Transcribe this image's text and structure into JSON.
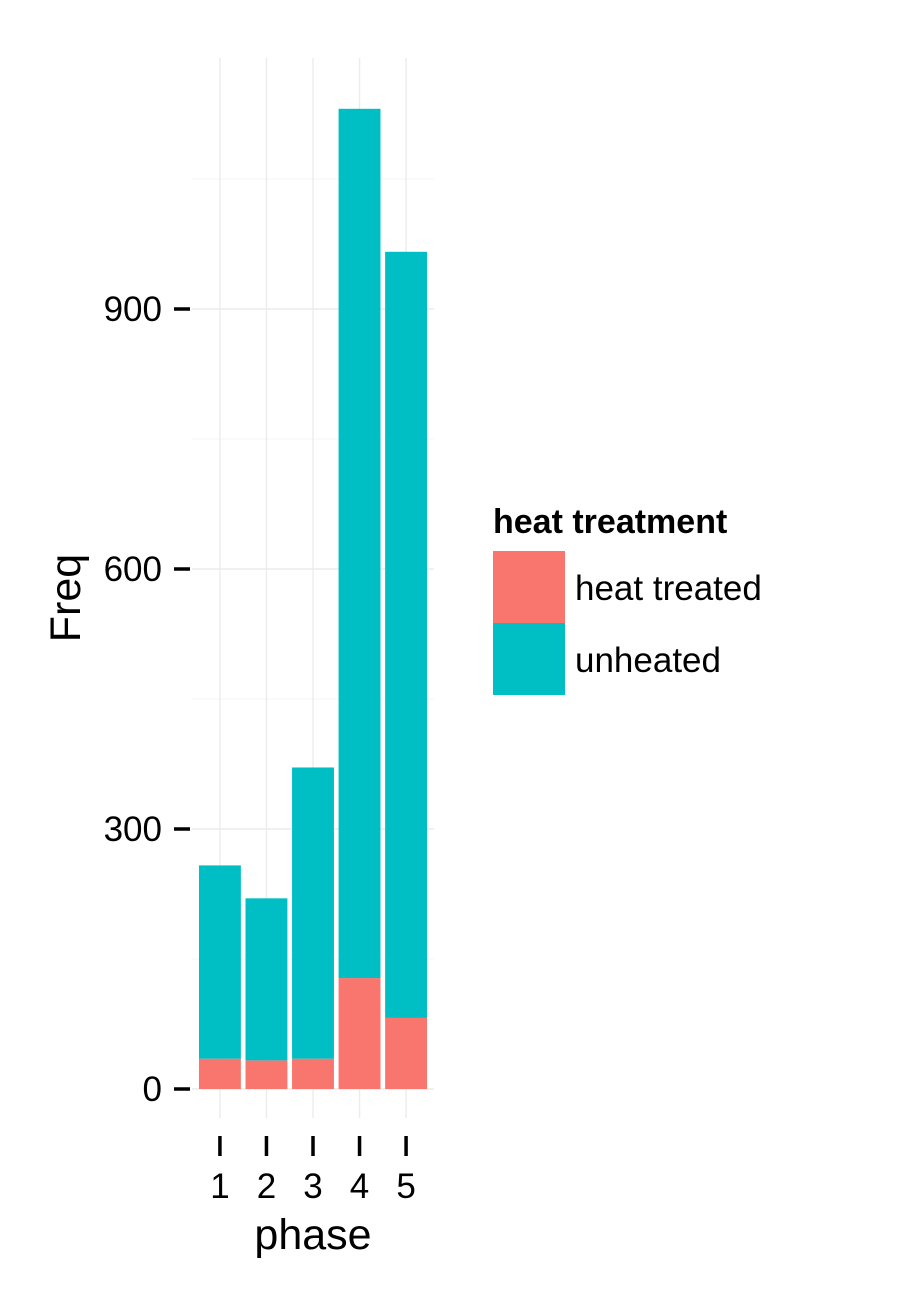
{
  "chart_data": {
    "type": "bar",
    "stacked": true,
    "categories": [
      "1",
      "2",
      "3",
      "4",
      "5"
    ],
    "series": [
      {
        "name": "heat treated",
        "values": [
          35,
          33,
          35,
          128,
          82
        ],
        "color": "#F8766D"
      },
      {
        "name": "unheated",
        "values": [
          223,
          187,
          336,
          1003,
          884
        ],
        "color": "#00BFC4"
      }
    ],
    "xlabel": "phase",
    "ylabel": "Freq",
    "yticks": [
      0,
      300,
      600,
      900
    ],
    "ylim": [
      0,
      1131
    ],
    "grid": true,
    "legend": {
      "title": "heat treatment",
      "position": "right",
      "entries": [
        "heat treated",
        "unheated"
      ]
    }
  }
}
